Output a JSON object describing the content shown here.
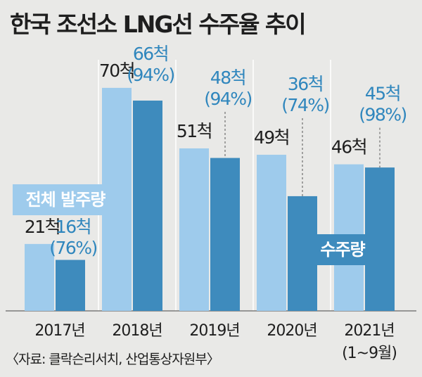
{
  "title": "한국 조선소 LNG선 수주율 추이",
  "colors": {
    "background": "#e9e9e7",
    "total_bar": "#9ecbec",
    "won_bar": "#3e8bbd",
    "won_label": "#2f86bd",
    "text": "#1e1e1e"
  },
  "chart_data": {
    "type": "bar",
    "title": "한국 조선소 LNG선 수주율 추이",
    "categories": [
      "2017년",
      "2018년",
      "2019년",
      "2020년",
      "2021년"
    ],
    "category_notes": [
      "",
      "",
      "",
      "",
      "(1~9월)"
    ],
    "ylim": [
      0,
      80
    ],
    "grid": false,
    "series": [
      {
        "name": "전체 발주량",
        "values": [
          21,
          70,
          51,
          49,
          46
        ],
        "labels": [
          "21척",
          "70척",
          "51척",
          "49척",
          "46척"
        ]
      },
      {
        "name": "수주량",
        "values": [
          16,
          66,
          48,
          36,
          45
        ],
        "labels": [
          "16척",
          "66척",
          "48척",
          "36척",
          "45척"
        ],
        "share_labels": [
          "(76%)",
          "(94%)",
          "(94%)",
          "(74%)",
          "(98%)"
        ]
      }
    ],
    "legend": [
      "전체 발주량",
      "수주량"
    ],
    "source": "〈자료: 클락슨리서치, 산업통상자원부〉"
  }
}
